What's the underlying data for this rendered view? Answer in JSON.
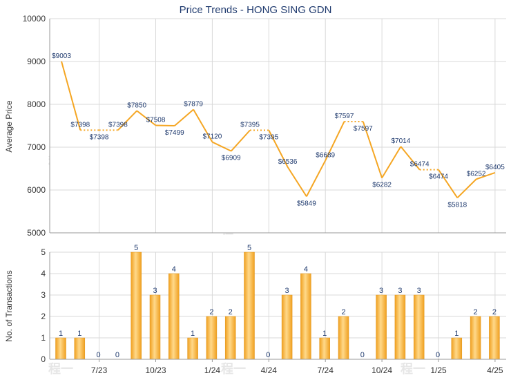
{
  "chart_data": [
    {
      "type": "line",
      "title": "Price Trends - HONG SING GDN",
      "xlabel": "",
      "ylabel": "Average Price",
      "ylim": [
        5000,
        10000
      ],
      "yticks": [
        "10000",
        "9000",
        "8000",
        "7000",
        "6000",
        "5000"
      ],
      "grid": true,
      "series_color": "#f5a623",
      "points": [
        {
          "y": 9003,
          "label": "$9003"
        },
        {
          "y": 7398,
          "label": "$7398"
        },
        {
          "y": 7398,
          "label": "$7398"
        },
        {
          "y": 7398,
          "label": "$7398"
        },
        {
          "y": 7850,
          "label": "$7850"
        },
        {
          "y": 7508,
          "label": "$7508"
        },
        {
          "y": 7499,
          "label": "$7499"
        },
        {
          "y": 7879,
          "label": "$7879"
        },
        {
          "y": 7120,
          "label": "$7120"
        },
        {
          "y": 6909,
          "label": "$6909"
        },
        {
          "y": 7395,
          "label": "$7395"
        },
        {
          "y": 7395,
          "label": "$7395"
        },
        {
          "y": 6536,
          "label": "$6536"
        },
        {
          "y": 5849,
          "label": "$5849"
        },
        {
          "y": 6689,
          "label": "$6689"
        },
        {
          "y": 7597,
          "label": "$7597"
        },
        {
          "y": 7597,
          "label": "$7597"
        },
        {
          "y": 6282,
          "label": "$6282"
        },
        {
          "y": 7014,
          "label": "$7014"
        },
        {
          "y": 6474,
          "label": "$6474"
        },
        {
          "y": 6474,
          "label": "$6474"
        },
        {
          "y": 5818,
          "label": "$5818"
        },
        {
          "y": 6252,
          "label": "$6252"
        },
        {
          "y": 6405,
          "label": "$6405"
        }
      ]
    },
    {
      "type": "bar",
      "xlabel": "",
      "ylabel": "No. of Transactions",
      "ylim": [
        0,
        5
      ],
      "yticks": [
        "5",
        "4",
        "3",
        "2",
        "1",
        "0"
      ],
      "grid": true,
      "bar_color": "#f5a623",
      "values": [
        1,
        1,
        0,
        0,
        5,
        3,
        4,
        1,
        2,
        2,
        5,
        0,
        3,
        4,
        1,
        2,
        0,
        3,
        3,
        3,
        0,
        1,
        2,
        2
      ],
      "value_labels": [
        "1",
        "1",
        "0",
        "0",
        "5",
        "3",
        "4",
        "1",
        "2",
        "2",
        "5",
        "0",
        "3",
        "4",
        "1",
        "2",
        "0",
        "3",
        "3",
        "3",
        "0",
        "1",
        "2",
        "2"
      ],
      "x_tick_labels": [
        "7/23",
        "10/23",
        "1/24",
        "4/24",
        "7/24",
        "10/24",
        "1/25",
        "4/25"
      ]
    }
  ],
  "watermark": "程一"
}
